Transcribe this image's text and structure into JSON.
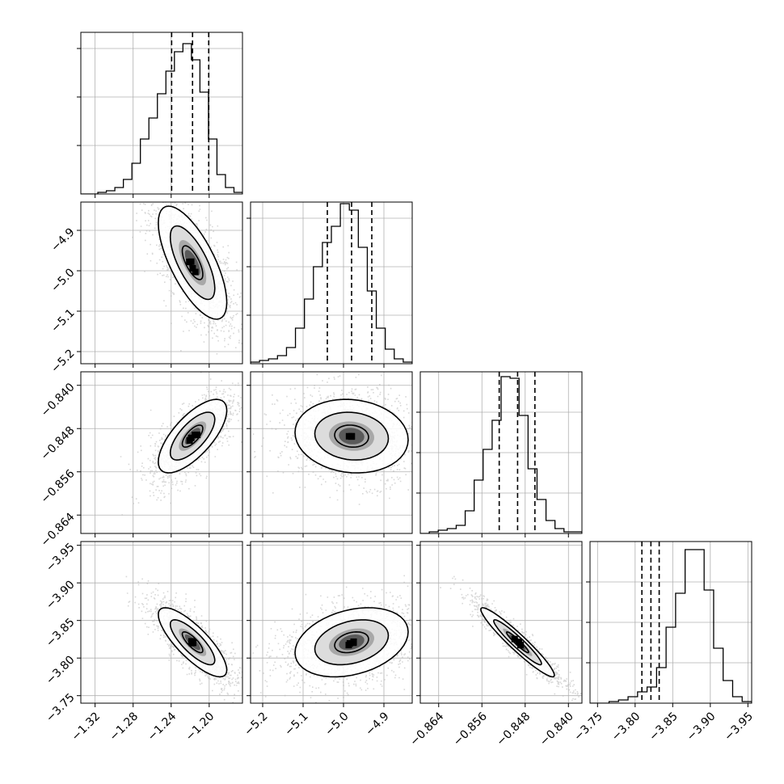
{
  "chart_data": {
    "type": "corner",
    "grid": true,
    "params": [
      {
        "range": [
          -1.335,
          -1.165
        ],
        "ticks": [
          "−1.32",
          "−1.28",
          "−1.24",
          "−1.20"
        ],
        "tick_values": [
          -1.32,
          -1.28,
          -1.24,
          -1.2
        ],
        "quantiles": [
          -1.2395,
          -1.2175,
          -1.2005
        ],
        "tick_rotation": 45,
        "reversed": false
      },
      {
        "range": [
          -5.23,
          -4.83
        ],
        "ticks": [
          "−5.2",
          "−5.1",
          "−5.0",
          "−4.9"
        ],
        "tick_values": [
          -5.2,
          -5.1,
          -5.0,
          -4.9
        ],
        "quantiles": [
          -5.04,
          -4.98,
          -4.93
        ],
        "tick_rotation": 45,
        "reversed": false
      },
      {
        "range": [
          -0.8674,
          -0.8375
        ],
        "ticks": [
          "−0.864",
          "−0.856",
          "−0.848",
          "−0.840"
        ],
        "tick_values": [
          -0.864,
          -0.856,
          -0.848,
          -0.84
        ],
        "quantiles": [
          -0.8528,
          -0.8494,
          -0.8462
        ],
        "tick_rotation": 45,
        "reversed": false
      },
      {
        "range": [
          -3.955,
          -3.74
        ],
        "ticks": [
          "−3.95",
          "−3.90",
          "−3.85",
          "−3.80",
          "−3.75"
        ],
        "tick_values": [
          -3.95,
          -3.9,
          -3.85,
          -3.8,
          -3.75
        ],
        "quantiles": [
          -3.832,
          -3.821,
          -3.809
        ],
        "tick_rotation": 45,
        "reversed": true
      }
    ],
    "histograms": [
      {
        "counts": [
          0,
          0,
          1,
          2,
          4,
          9,
          19,
          34,
          47,
          62,
          76,
          88,
          93,
          83,
          63,
          34,
          12,
          4,
          1
        ],
        "ymax": 100,
        "ytick_values": [
          30,
          60,
          90
        ]
      },
      {
        "counts": [
          1,
          2,
          3,
          5,
          10,
          22,
          40,
          60,
          75,
          85,
          99,
          95,
          72,
          45,
          22,
          9,
          3,
          1
        ],
        "ymax": 100,
        "ytick_values": [
          30,
          60,
          90
        ]
      },
      {
        "counts": [
          0,
          1,
          2,
          3,
          5,
          14,
          33,
          52,
          70,
          97,
          96,
          73,
          40,
          21,
          8,
          3,
          1,
          1
        ],
        "ymax": 100,
        "ytick_values": [
          25,
          50,
          75
        ]
      },
      {
        "counts": [
          0,
          0,
          1,
          2,
          4,
          7,
          10,
          22,
          47,
          68,
          95,
          95,
          70,
          34,
          14,
          4,
          1
        ],
        "ymax": 100,
        "ytick_values": [
          25,
          50,
          75
        ]
      }
    ],
    "joint": [
      {
        "row": 1,
        "col": 0,
        "mean": [
          -1.2175,
          -4.98
        ],
        "std": [
          0.018,
          0.07
        ],
        "corr": -0.7
      },
      {
        "row": 2,
        "col": 0,
        "mean": [
          -1.2175,
          -0.8494
        ],
        "std": [
          0.018,
          0.0034
        ],
        "corr": 0.7
      },
      {
        "row": 2,
        "col": 1,
        "mean": [
          -4.98,
          -0.8494
        ],
        "std": [
          0.07,
          0.0034
        ],
        "corr": -0.1
      },
      {
        "row": 3,
        "col": 0,
        "mean": [
          -1.2175,
          -3.821
        ],
        "std": [
          0.018,
          0.023
        ],
        "corr": 0.8
      },
      {
        "row": 3,
        "col": 1,
        "mean": [
          -4.98,
          -3.821
        ],
        "std": [
          0.07,
          0.023
        ],
        "corr": -0.3
      },
      {
        "row": 3,
        "col": 2,
        "mean": [
          -0.8494,
          -3.821
        ],
        "std": [
          0.0034,
          0.023
        ],
        "corr": 0.95
      }
    ],
    "contour_levels": [
      0.6,
      1.3,
      2.0
    ]
  }
}
